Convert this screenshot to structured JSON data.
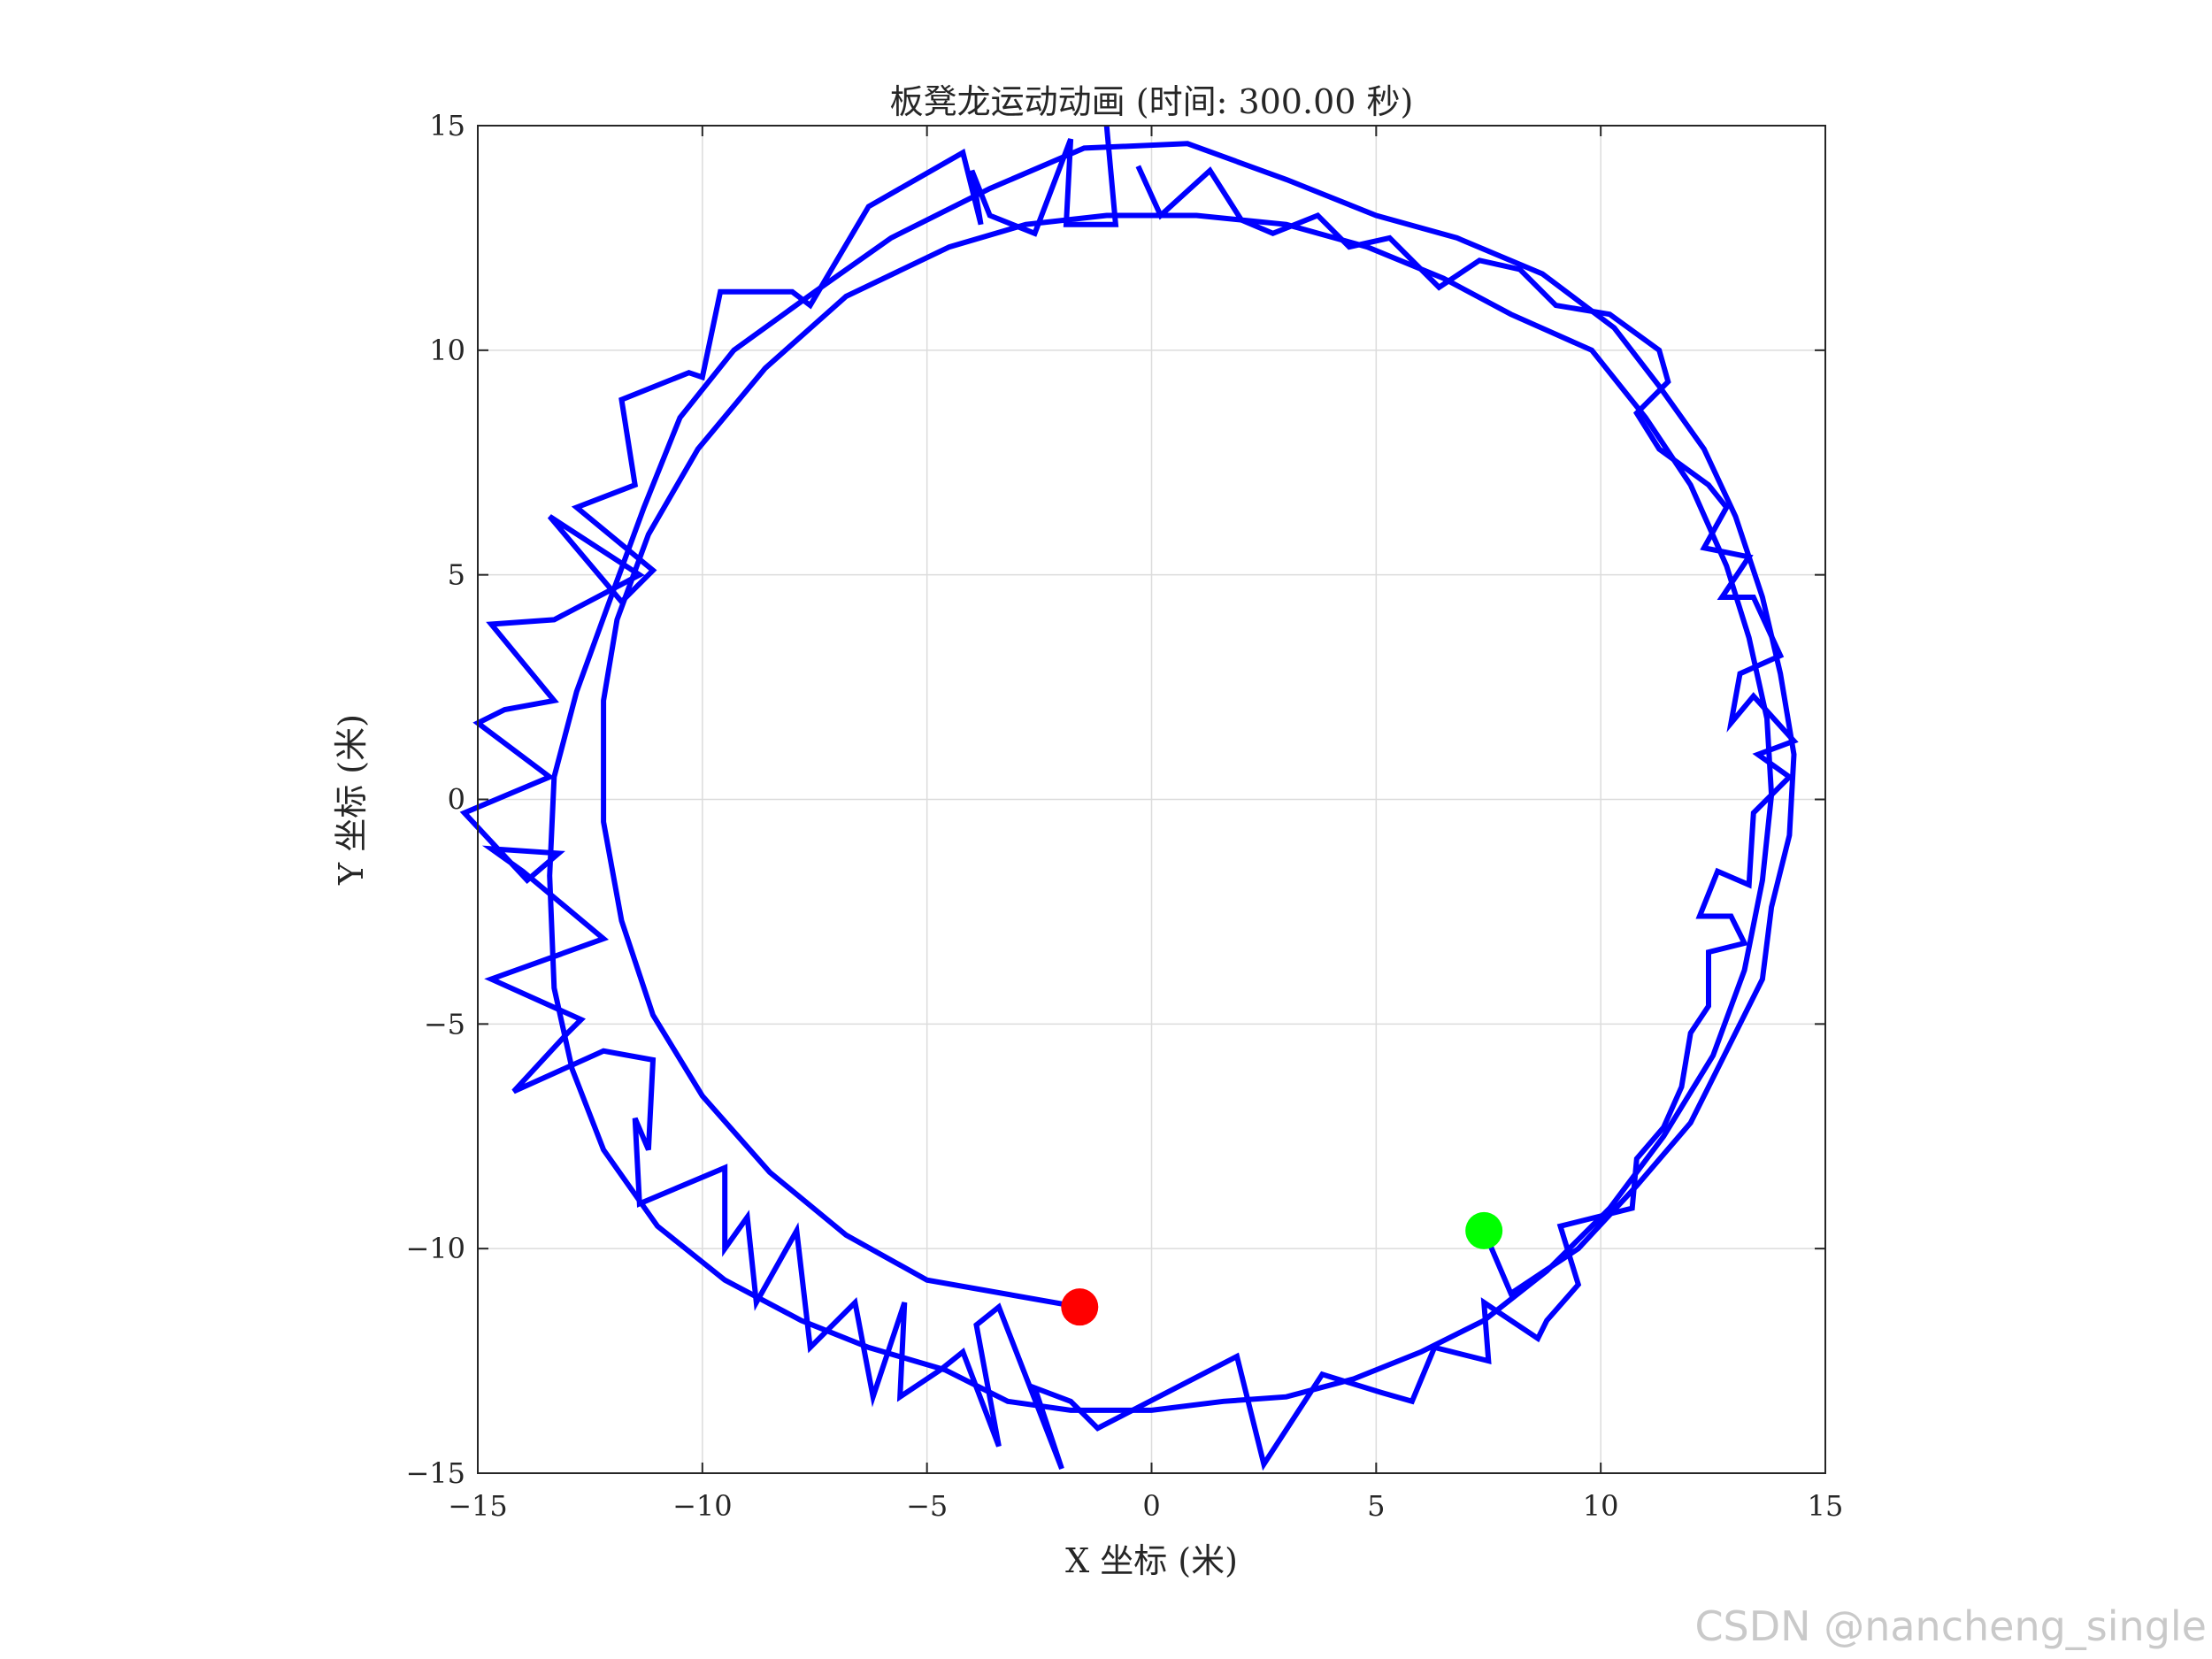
{
  "watermark": "CSDN @nancheng_single",
  "chart_data": {
    "type": "line",
    "title": "板凳龙运动动画 (时间: 300.00 秒)",
    "xlabel": "X 坐标 (米)",
    "ylabel": "Y 坐标 (米)",
    "xlim": [
      -15,
      15
    ],
    "ylim": [
      -15,
      15
    ],
    "xticks": [
      -15,
      -10,
      -5,
      0,
      5,
      10,
      15
    ],
    "yticks": [
      -15,
      -10,
      -5,
      0,
      5,
      10,
      15
    ],
    "xtick_labels": [
      "−15",
      "−10",
      "−5",
      "0",
      "5",
      "10",
      "15"
    ],
    "ytick_labels": [
      "−15",
      "−10",
      "−5",
      "0",
      "5",
      "10",
      "15"
    ],
    "grid": true,
    "line_color": "#0000ff",
    "series": [
      {
        "values": [
          [
            -1.6,
            -11.3
          ],
          [
            -5.0,
            -10.7
          ],
          [
            -6.8,
            -9.7
          ],
          [
            -8.5,
            -8.3
          ],
          [
            -10.0,
            -6.6
          ],
          [
            -11.1,
            -4.8
          ],
          [
            -11.8,
            -2.7
          ],
          [
            -12.2,
            -0.5
          ],
          [
            -12.2,
            2.2
          ],
          [
            -11.9,
            4.0
          ],
          [
            -11.2,
            5.9
          ],
          [
            -10.1,
            7.8
          ],
          [
            -8.6,
            9.6
          ],
          [
            -6.8,
            11.2
          ],
          [
            -4.5,
            12.3
          ],
          [
            -2.8,
            12.8
          ],
          [
            -1.0,
            13.0
          ],
          [
            1.0,
            13.0
          ],
          [
            3.0,
            12.8
          ],
          [
            4.8,
            12.3
          ],
          [
            6.5,
            11.6
          ],
          [
            8.0,
            10.8
          ],
          [
            9.8,
            10.0
          ],
          [
            11.0,
            8.5
          ],
          [
            12.0,
            7.0
          ],
          [
            12.8,
            5.2
          ],
          [
            13.3,
            3.6
          ],
          [
            13.7,
            1.8
          ],
          [
            13.8,
            0.1
          ],
          [
            13.6,
            -1.8
          ],
          [
            13.2,
            -3.8
          ],
          [
            12.5,
            -5.7
          ],
          [
            11.4,
            -7.5
          ],
          [
            10.2,
            -9.1
          ],
          [
            8.8,
            -10.5
          ],
          [
            7.4,
            -11.6
          ],
          [
            6.0,
            -12.3
          ],
          [
            4.5,
            -12.9
          ],
          [
            3.0,
            -13.3
          ],
          [
            1.6,
            -13.4
          ],
          [
            0.0,
            -13.6
          ],
          [
            -1.8,
            -13.6
          ],
          [
            -3.2,
            -13.4
          ],
          [
            -4.6,
            -12.7
          ],
          [
            -6.3,
            -12.2
          ],
          [
            -7.8,
            -11.6
          ],
          [
            -9.5,
            -10.7
          ],
          [
            -11.0,
            -9.5
          ],
          [
            -12.2,
            -7.8
          ],
          [
            -12.9,
            -6.0
          ],
          [
            -13.3,
            -4.2
          ],
          [
            -13.4,
            -1.7
          ],
          [
            -13.3,
            0.5
          ],
          [
            -12.8,
            2.4
          ],
          [
            -12.0,
            4.6
          ],
          [
            -11.3,
            6.5
          ],
          [
            -10.5,
            8.5
          ],
          [
            -9.3,
            10.0
          ],
          [
            -7.5,
            11.3
          ],
          [
            -5.8,
            12.5
          ],
          [
            -3.6,
            13.6
          ],
          [
            -1.5,
            14.5
          ],
          [
            0.8,
            14.6
          ],
          [
            3.0,
            13.8
          ],
          [
            5.0,
            13.0
          ],
          [
            6.8,
            12.5
          ],
          [
            8.7,
            11.7
          ],
          [
            10.3,
            10.5
          ],
          [
            11.3,
            9.2
          ],
          [
            12.3,
            7.8
          ],
          [
            13.0,
            6.3
          ],
          [
            13.6,
            4.5
          ],
          [
            14.0,
            2.8
          ],
          [
            14.3,
            1.0
          ],
          [
            14.2,
            -0.8
          ],
          [
            13.8,
            -2.4
          ],
          [
            13.6,
            -4.0
          ],
          [
            12.8,
            -5.6
          ],
          [
            12.0,
            -7.2
          ],
          [
            10.8,
            -8.6
          ],
          [
            9.5,
            -10.0
          ],
          [
            8.0,
            -11.0
          ],
          [
            7.4,
            -9.6
          ]
        ],
        "zigzag_points": [
          [
            -1.0,
            15.0
          ],
          [
            -0.8,
            12.8
          ],
          [
            -1.9,
            12.8
          ],
          [
            -1.8,
            14.7
          ],
          [
            -2.6,
            12.6
          ],
          [
            -3.6,
            13.0
          ],
          [
            -4.0,
            14.0
          ],
          [
            -3.8,
            12.8
          ],
          [
            -4.2,
            14.4
          ],
          [
            -6.3,
            13.2
          ],
          [
            -7.6,
            11.0
          ],
          [
            -8.0,
            11.3
          ],
          [
            -9.6,
            11.3
          ],
          [
            -10.0,
            9.4
          ],
          [
            -10.3,
            9.5
          ],
          [
            -11.8,
            8.9
          ],
          [
            -11.5,
            7.0
          ],
          [
            -12.8,
            6.5
          ],
          [
            -11.1,
            5.1
          ],
          [
            -11.8,
            4.4
          ],
          [
            -13.4,
            6.3
          ],
          [
            -11.4,
            5.0
          ],
          [
            -13.3,
            4.0
          ],
          [
            -14.7,
            3.9
          ],
          [
            -13.3,
            2.2
          ],
          [
            -14.4,
            2.0
          ],
          [
            -15.0,
            1.7
          ],
          [
            -13.4,
            0.5
          ],
          [
            -15.3,
            -0.3
          ],
          [
            -13.9,
            -1.8
          ],
          [
            -13.2,
            -1.2
          ],
          [
            -14.7,
            -1.1
          ],
          [
            -14.0,
            -1.6
          ],
          [
            -12.2,
            -3.1
          ],
          [
            -14.7,
            -4.0
          ],
          [
            -12.7,
            -4.9
          ],
          [
            -13.0,
            -5.2
          ],
          [
            -14.2,
            -6.5
          ],
          [
            -12.2,
            -5.6
          ],
          [
            -11.1,
            -5.8
          ],
          [
            -11.2,
            -7.8
          ],
          [
            -11.5,
            -7.1
          ],
          [
            -11.4,
            -9.0
          ],
          [
            -9.5,
            -8.2
          ],
          [
            -9.5,
            -10.0
          ],
          [
            -9.0,
            -9.3
          ],
          [
            -8.8,
            -11.2
          ],
          [
            -7.9,
            -9.6
          ],
          [
            -7.6,
            -12.2
          ],
          [
            -6.6,
            -11.2
          ],
          [
            -6.2,
            -13.3
          ],
          [
            -5.5,
            -11.2
          ],
          [
            -5.6,
            -13.3
          ],
          [
            -4.7,
            -12.7
          ],
          [
            -4.2,
            -12.3
          ],
          [
            -3.4,
            -14.4
          ],
          [
            -3.9,
            -11.7
          ],
          [
            -3.4,
            -11.3
          ],
          [
            -2.0,
            -14.9
          ],
          [
            -2.6,
            -13.1
          ],
          [
            -1.8,
            -13.4
          ],
          [
            -1.2,
            -14.0
          ],
          [
            1.9,
            -12.4
          ],
          [
            2.5,
            -14.8
          ],
          [
            3.8,
            -12.8
          ],
          [
            5.1,
            -13.2
          ],
          [
            5.8,
            -13.4
          ],
          [
            6.3,
            -12.2
          ],
          [
            7.5,
            -12.5
          ],
          [
            7.4,
            -11.2
          ],
          [
            8.6,
            -12.0
          ],
          [
            8.8,
            -11.6
          ],
          [
            9.5,
            -10.8
          ],
          [
            9.1,
            -9.5
          ],
          [
            10.7,
            -9.1
          ],
          [
            10.8,
            -8.0
          ],
          [
            11.4,
            -7.3
          ],
          [
            11.8,
            -6.4
          ],
          [
            12.0,
            -5.2
          ],
          [
            12.4,
            -4.6
          ],
          [
            12.4,
            -3.4
          ],
          [
            13.2,
            -3.2
          ],
          [
            12.9,
            -2.6
          ],
          [
            12.2,
            -2.6
          ],
          [
            12.6,
            -1.6
          ],
          [
            13.3,
            -1.9
          ],
          [
            13.4,
            -0.3
          ],
          [
            14.2,
            0.5
          ],
          [
            13.5,
            1.0
          ],
          [
            14.3,
            1.3
          ],
          [
            13.4,
            2.3
          ],
          [
            12.9,
            1.7
          ],
          [
            13.1,
            2.8
          ],
          [
            14.0,
            3.2
          ],
          [
            13.4,
            4.5
          ],
          [
            12.7,
            4.5
          ],
          [
            13.3,
            5.4
          ],
          [
            12.3,
            5.6
          ],
          [
            12.8,
            6.5
          ],
          [
            12.4,
            7.0
          ],
          [
            11.3,
            7.8
          ],
          [
            10.8,
            8.6
          ],
          [
            11.5,
            9.3
          ],
          [
            11.3,
            10.0
          ],
          [
            10.2,
            10.8
          ],
          [
            9.0,
            11.0
          ],
          [
            8.2,
            11.8
          ],
          [
            7.3,
            12.0
          ],
          [
            6.4,
            11.4
          ],
          [
            5.3,
            12.5
          ],
          [
            4.4,
            12.3
          ],
          [
            3.7,
            13.0
          ],
          [
            2.7,
            12.6
          ],
          [
            2.0,
            12.9
          ],
          [
            1.3,
            14.0
          ],
          [
            0.2,
            13.0
          ],
          [
            -0.3,
            14.1
          ]
        ]
      }
    ],
    "markers": [
      {
        "x": -1.6,
        "y": -11.3,
        "color": "#ff0000"
      },
      {
        "x": 7.4,
        "y": -9.6,
        "color": "#00ff00"
      }
    ]
  }
}
